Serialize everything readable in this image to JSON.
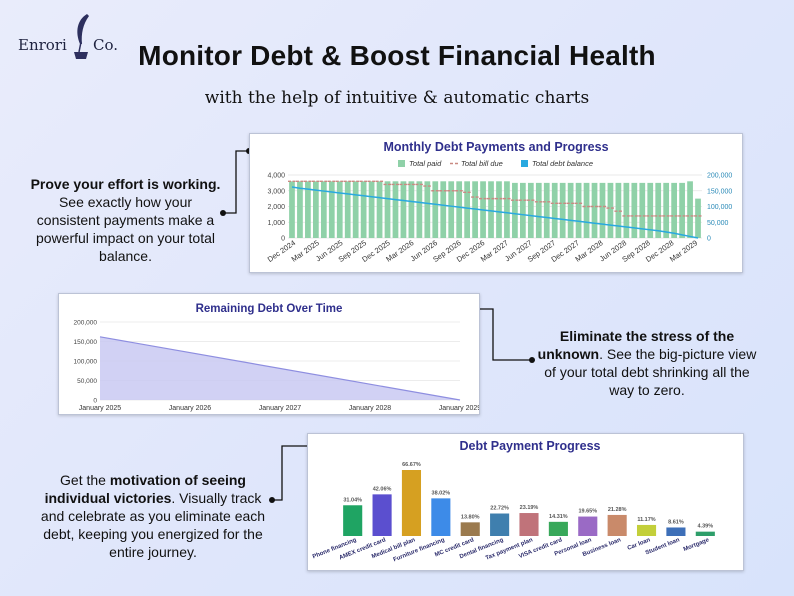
{
  "brand": {
    "left": "Enrori",
    "right": "Co."
  },
  "header": {
    "title": "Monitor Debt & Boost Financial Health",
    "subtitle": "with the help of intuitive & automatic charts"
  },
  "callouts": {
    "first": {
      "bold": "Prove your effort is working.",
      "text": " See exactly how your consistent payments make a powerful impact on your total balance."
    },
    "second": {
      "bold": "Eliminate the stress of the unknown",
      "text": ". See the big-picture view of your total debt shrinking all the way to zero."
    },
    "third": {
      "pre": "Get the ",
      "bold": "motivation of seeing individual victories",
      "text": ". Visually track and celebrate as you eliminate each debt, keeping you energized for the entire journey."
    }
  },
  "colors": {
    "total_paid": "#8fd1a8",
    "total_bill_due": "#c98a82",
    "total_debt_balance": "#29a9e0",
    "area_fill": "#c9c9f2",
    "area_line": "#8e8ee0",
    "card_title": "#2f2f8c"
  },
  "chart_data": [
    {
      "type": "bar",
      "title": "Monthly Debt Payments and Progress",
      "legend": [
        "Total paid",
        "Total bill due",
        "Total debt balance"
      ],
      "legend_position": "top",
      "y_left": {
        "ticks": [
          "0",
          "1,000",
          "2,000",
          "3,000",
          "4,000"
        ],
        "ylim": [
          0,
          4000
        ]
      },
      "y_right": {
        "ticks": [
          "0",
          "50,000",
          "100,000",
          "150,000",
          "200,000"
        ],
        "ylim": [
          0,
          200000
        ]
      },
      "x_tick_labels": [
        "Dec 2024",
        "Mar 2025",
        "Jun 2025",
        "Sep 2025",
        "Dec 2025",
        "Mar 2026",
        "Jun 2026",
        "Sep 2026",
        "Dec 2026",
        "Mar 2027",
        "Jun 2027",
        "Sep 2027",
        "Dec 2027",
        "Mar 2028",
        "Jun 2028",
        "Sep 2028",
        "Dec 2028",
        "Mar 2029"
      ],
      "total_paid": [
        3600,
        3600,
        3600,
        3600,
        3600,
        3600,
        3600,
        3600,
        3600,
        3600,
        3600,
        3600,
        3600,
        3600,
        3600,
        3600,
        3600,
        3600,
        3600,
        3600,
        3600,
        3600,
        3600,
        3600,
        3600,
        3600,
        3600,
        3600,
        3500,
        3500,
        3500,
        3500,
        3500,
        3500,
        3500,
        3500,
        3500,
        3500,
        3500,
        3500,
        3500,
        3500,
        3500,
        3500,
        3500,
        3500,
        3500,
        3500,
        3500,
        3500,
        3600,
        2500
      ],
      "total_bill_due": [
        3600,
        3600,
        3600,
        3600,
        3600,
        3600,
        3600,
        3600,
        3600,
        3600,
        3600,
        3600,
        3400,
        3400,
        3400,
        3400,
        3400,
        3300,
        3000,
        3000,
        3000,
        3000,
        2900,
        2600,
        2500,
        2500,
        2500,
        2500,
        2400,
        2400,
        2400,
        2300,
        2300,
        2200,
        2200,
        2200,
        2200,
        2000,
        2000,
        2000,
        1900,
        1700,
        1400,
        1400,
        1400,
        1400,
        1400,
        1400,
        1400,
        1400,
        1400,
        1400
      ],
      "total_debt_balance": [
        162000,
        158000,
        155000,
        152000,
        149000,
        146000,
        143000,
        140000,
        137000,
        134000,
        131000,
        128000,
        125000,
        122000,
        119000,
        116000,
        113000,
        110000,
        107000,
        104000,
        101000,
        98000,
        95000,
        92000,
        89000,
        86000,
        83000,
        80000,
        77000,
        74000,
        71000,
        68000,
        65000,
        62000,
        59000,
        56000,
        53000,
        50000,
        47000,
        44000,
        41000,
        38000,
        35000,
        32000,
        29000,
        26000,
        23000,
        19000,
        15000,
        10000,
        5000,
        0
      ]
    },
    {
      "type": "area",
      "title": "Remaining Debt Over Time",
      "y_ticks": [
        "0",
        "50,000",
        "100,000",
        "150,000",
        "200,000"
      ],
      "ylim": [
        0,
        200000
      ],
      "x_tick_labels": [
        "January 2025",
        "January 2026",
        "January 2027",
        "January 2028",
        "January 2029"
      ],
      "x": [
        2025,
        2029
      ],
      "values": [
        162000,
        0
      ]
    },
    {
      "type": "bar",
      "title": "Debt Payment Progress",
      "categories": [
        "Phone financing",
        "AMEX credit card",
        "Medical bill plan",
        "Furniture financing",
        "MC credit card",
        "Dental financing",
        "Tax payment plan",
        "VISA credit card",
        "Personal loan",
        "Business loan",
        "Car loan",
        "Student loan",
        "Mortgage"
      ],
      "values": [
        31.04,
        42.06,
        66.67,
        38.02,
        13.8,
        22.72,
        23.19,
        14.31,
        19.65,
        21.28,
        11.17,
        8.61,
        4.39
      ],
      "value_labels": [
        "31.04%",
        "42.06%",
        "66.67%",
        "38.02%",
        "13.80%",
        "22.72%",
        "23.19%",
        "14.31%",
        "19.65%",
        "21.28%",
        "11.17%",
        "8.61%",
        "4.39%"
      ],
      "bar_colors": [
        "#1fa463",
        "#5b4fcf",
        "#d6a021",
        "#3d8be8",
        "#9b7a4e",
        "#3f7fae",
        "#c0737a",
        "#38a85a",
        "#9a6ac5",
        "#c98a6a",
        "#c3cf3a",
        "#3d6fb8",
        "#2e9e6a"
      ]
    }
  ]
}
